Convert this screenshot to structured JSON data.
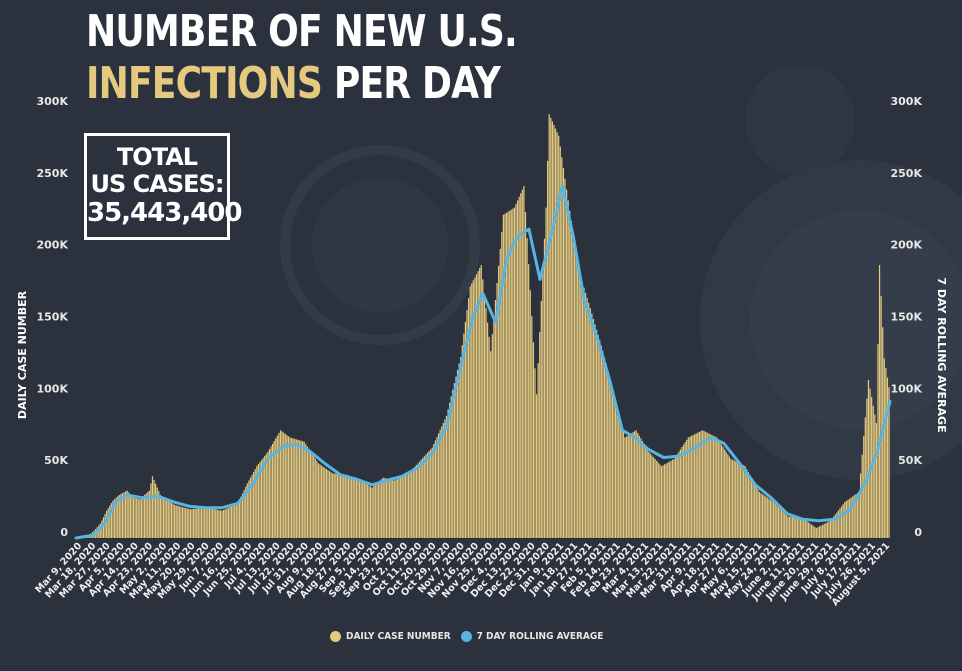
{
  "title": {
    "line1": "NUMBER OF NEW U.S.",
    "line2_highlight": "INFECTIONS",
    "line2_rest": " PER DAY"
  },
  "total_box": {
    "line1": "TOTAL",
    "line2": "US CASES:",
    "value": "35,443,400"
  },
  "legend": {
    "daily_label": "DAILY CASE NUMBER",
    "rolling_label": "7 DAY ROLLING AVERAGE"
  },
  "colors": {
    "background": "#2b323d",
    "daily_bars": "#e4c97f",
    "rolling_line": "#5ab4e0",
    "highlight_title": "#e4c97f",
    "text": "#ffffff"
  },
  "chart_data": {
    "type": "bar",
    "title": "NUMBER OF NEW U.S. INFECTIONS PER DAY",
    "ylabel": "DAILY CASE NUMBER",
    "ylabel_right": "7 DAY ROLLING AVERAGE",
    "ylim": [
      0,
      300000
    ],
    "y_ticks": [
      "0",
      "50K",
      "100K",
      "150K",
      "200K",
      "250K",
      "300K"
    ],
    "x_start": "2020-03-09",
    "x_end": "2021-08-05",
    "x_tick_labels": [
      "Mar 9, 2020",
      "Mar 18, 2020",
      "Mar 27, 2020",
      "Apr 5, 2020",
      "Apr 14, 2020",
      "Apr 23, 2020",
      "May 2, 2020",
      "May 11, 2020",
      "May 20, 2020",
      "May 29, 2020",
      "Jun 7, 2020",
      "Jun 16, 2020",
      "Jun 25, 2020",
      "Jul 4, 2020",
      "Jul 13, 2020",
      "Jul 22, 2020",
      "Jul 31, 2020",
      "Aug 9, 2020",
      "Aug 18, 2020",
      "Aug 27, 2020",
      "Sep 5, 2020",
      "Sep 14, 2020",
      "Sep 23, 2020",
      "Oct 2, 2020",
      "Oct 11, 2020",
      "Oct 20, 2020",
      "Oct 29, 2020",
      "Nov 7, 2020",
      "Nov 16, 2020",
      "Nov 25, 2020",
      "Dec 4, 2020",
      "Dec 13, 2020",
      "Dec 22, 2020",
      "Dec 31, 2020",
      "Jan 9, 2021",
      "Jan 18, 2021",
      "Jan 27, 2021",
      "Feb 5, 2021",
      "Feb 14, 2021",
      "Feb 23, 2021",
      "Mar 4, 2021",
      "Mar 13, 2021",
      "Mar 22, 2021",
      "Mar 31, 2021",
      "Apr 9, 2021",
      "Apr 18, 2021",
      "Apr 27, 2021",
      "May 6, 2021",
      "May 15, 2021",
      "May 24, 2021",
      "June 2, 2021",
      "June 11, 2021",
      "June 20, 2021",
      "June 29, 2021",
      "July 8, 2021",
      "July 17, 2021",
      "July 26, 2021",
      "August 5, 2021"
    ],
    "series": [
      {
        "name": "DAILY CASE NUMBER",
        "kind": "bar",
        "points": [
          [
            "2020-03-09",
            0
          ],
          [
            "2020-03-16",
            1000
          ],
          [
            "2020-03-20",
            5000
          ],
          [
            "2020-03-24",
            10000
          ],
          [
            "2020-03-28",
            19000
          ],
          [
            "2020-04-01",
            26000
          ],
          [
            "2020-04-05",
            30000
          ],
          [
            "2020-04-10",
            33000
          ],
          [
            "2020-04-14",
            28000
          ],
          [
            "2020-04-18",
            27000
          ],
          [
            "2020-04-24",
            33000
          ],
          [
            "2020-04-26",
            43000
          ],
          [
            "2020-05-01",
            30000
          ],
          [
            "2020-05-10",
            23000
          ],
          [
            "2020-05-20",
            20000
          ],
          [
            "2020-05-30",
            21000
          ],
          [
            "2020-06-09",
            19000
          ],
          [
            "2020-06-19",
            24000
          ],
          [
            "2020-06-25",
            38000
          ],
          [
            "2020-07-01",
            50000
          ],
          [
            "2020-07-08",
            60000
          ],
          [
            "2020-07-16",
            75000
          ],
          [
            "2020-07-22",
            70000
          ],
          [
            "2020-07-31",
            67000
          ],
          [
            "2020-08-09",
            52000
          ],
          [
            "2020-08-18",
            45000
          ],
          [
            "2020-08-27",
            44000
          ],
          [
            "2020-09-05",
            40000
          ],
          [
            "2020-09-12",
            35000
          ],
          [
            "2020-09-19",
            42000
          ],
          [
            "2020-09-26",
            40000
          ],
          [
            "2020-10-04",
            44000
          ],
          [
            "2020-10-11",
            52000
          ],
          [
            "2020-10-20",
            63000
          ],
          [
            "2020-10-29",
            85000
          ],
          [
            "2020-11-07",
            126000
          ],
          [
            "2020-11-13",
            175000
          ],
          [
            "2020-11-20",
            190000
          ],
          [
            "2020-11-26",
            130000
          ],
          [
            "2020-12-04",
            225000
          ],
          [
            "2020-12-11",
            230000
          ],
          [
            "2020-12-17",
            245000
          ],
          [
            "2020-12-25",
            100000
          ],
          [
            "2020-12-31",
            230000
          ],
          [
            "2021-01-02",
            295000
          ],
          [
            "2021-01-08",
            280000
          ],
          [
            "2021-01-14",
            235000
          ],
          [
            "2021-01-21",
            185000
          ],
          [
            "2021-01-28",
            160000
          ],
          [
            "2021-02-05",
            130000
          ],
          [
            "2021-02-12",
            100000
          ],
          [
            "2021-02-19",
            70000
          ],
          [
            "2021-02-26",
            75000
          ],
          [
            "2021-03-06",
            60000
          ],
          [
            "2021-03-14",
            50000
          ],
          [
            "2021-03-22",
            55000
          ],
          [
            "2021-03-31",
            70000
          ],
          [
            "2021-04-09",
            75000
          ],
          [
            "2021-04-18",
            70000
          ],
          [
            "2021-04-27",
            55000
          ],
          [
            "2021-05-06",
            50000
          ],
          [
            "2021-05-15",
            32000
          ],
          [
            "2021-05-24",
            25000
          ],
          [
            "2021-06-02",
            15000
          ],
          [
            "2021-06-11",
            14000
          ],
          [
            "2021-06-20",
            7000
          ],
          [
            "2021-06-29",
            12000
          ],
          [
            "2021-07-08",
            25000
          ],
          [
            "2021-07-17",
            32000
          ],
          [
            "2021-07-23",
            110000
          ],
          [
            "2021-07-28",
            80000
          ],
          [
            "2021-07-30",
            190000
          ],
          [
            "2021-08-02",
            125000
          ],
          [
            "2021-08-05",
            105000
          ]
        ]
      },
      {
        "name": "7 DAY ROLLING AVERAGE",
        "kind": "line",
        "points": [
          [
            "2020-03-09",
            0
          ],
          [
            "2020-03-20",
            2000
          ],
          [
            "2020-03-27",
            10000
          ],
          [
            "2020-04-03",
            25000
          ],
          [
            "2020-04-10",
            30000
          ],
          [
            "2020-04-20",
            28000
          ],
          [
            "2020-04-30",
            29000
          ],
          [
            "2020-05-10",
            25000
          ],
          [
            "2020-05-20",
            22000
          ],
          [
            "2020-05-30",
            21000
          ],
          [
            "2020-06-09",
            21000
          ],
          [
            "2020-06-19",
            24000
          ],
          [
            "2020-06-29",
            38000
          ],
          [
            "2020-07-08",
            55000
          ],
          [
            "2020-07-18",
            64000
          ],
          [
            "2020-07-26",
            65000
          ],
          [
            "2020-08-03",
            61000
          ],
          [
            "2020-08-13",
            52000
          ],
          [
            "2020-08-23",
            44000
          ],
          [
            "2020-09-02",
            41000
          ],
          [
            "2020-09-12",
            37000
          ],
          [
            "2020-09-21",
            40000
          ],
          [
            "2020-10-01",
            43000
          ],
          [
            "2020-10-11",
            49000
          ],
          [
            "2020-10-20",
            59000
          ],
          [
            "2020-10-29",
            78000
          ],
          [
            "2020-11-07",
            120000
          ],
          [
            "2020-11-15",
            155000
          ],
          [
            "2020-11-21",
            170000
          ],
          [
            "2020-11-29",
            150000
          ],
          [
            "2020-12-06",
            195000
          ],
          [
            "2020-12-13",
            210000
          ],
          [
            "2020-12-20",
            215000
          ],
          [
            "2020-12-27",
            180000
          ],
          [
            "2021-01-04",
            215000
          ],
          [
            "2021-01-10",
            245000
          ],
          [
            "2021-01-17",
            210000
          ],
          [
            "2021-01-24",
            165000
          ],
          [
            "2021-02-01",
            140000
          ],
          [
            "2021-02-09",
            110000
          ],
          [
            "2021-02-17",
            75000
          ],
          [
            "2021-02-25",
            70000
          ],
          [
            "2021-03-05",
            62000
          ],
          [
            "2021-03-15",
            56000
          ],
          [
            "2021-03-25",
            57000
          ],
          [
            "2021-04-04",
            63000
          ],
          [
            "2021-04-14",
            70000
          ],
          [
            "2021-04-22",
            66000
          ],
          [
            "2021-05-02",
            52000
          ],
          [
            "2021-05-12",
            37000
          ],
          [
            "2021-05-22",
            28000
          ],
          [
            "2021-06-01",
            17000
          ],
          [
            "2021-06-11",
            13000
          ],
          [
            "2021-06-21",
            12000
          ],
          [
            "2021-07-01",
            13000
          ],
          [
            "2021-07-11",
            20000
          ],
          [
            "2021-07-21",
            40000
          ],
          [
            "2021-07-28",
            60000
          ],
          [
            "2021-08-05",
            95000
          ]
        ]
      }
    ],
    "grid": false,
    "legend_position": "bottom-center"
  }
}
